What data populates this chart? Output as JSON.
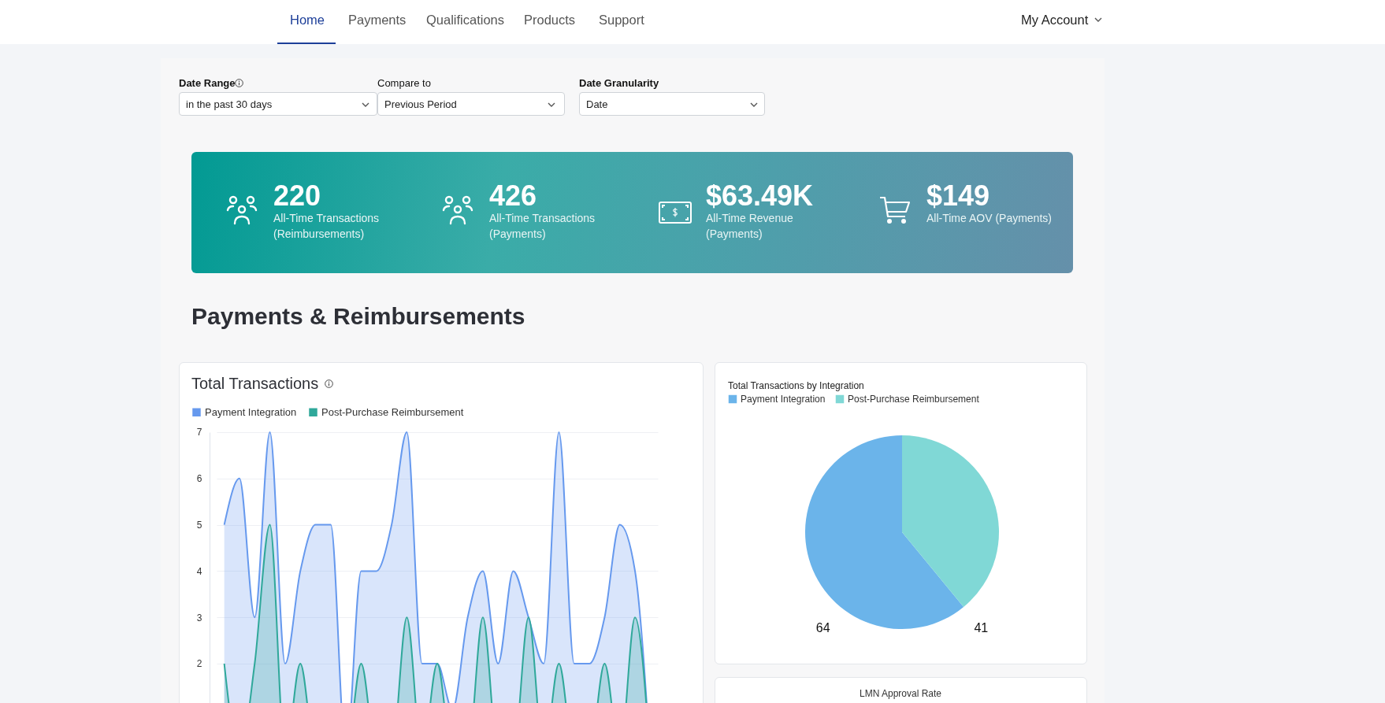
{
  "chart_data": [
    {
      "type": "other",
      "annotations": [
        "Home",
        "Payments",
        "Qualifications",
        "Products",
        "Support",
        "My Account",
        "Date Range",
        "in the past 30 days",
        "Compare to",
        "Previous Period",
        "Date Granularity",
        "Date",
        "Payments & Reimbursements"
      ]
    },
    {
      "type": "other",
      "annotations": [
        "220",
        "All-Time Transactions (Reimbursements)",
        "426",
        "All-Time Transactions (Payments)",
        "$63.49K",
        "All-Time Revenue (Payments)",
        "$149",
        "All-Time AOV (Payments)"
      ]
    },
    {
      "type": "area",
      "title": "Total Transactions",
      "categories": [
        null,
        null,
        null,
        null,
        null,
        null,
        null,
        null,
        null,
        null,
        null,
        null,
        null,
        null,
        null,
        null,
        null,
        null,
        null,
        null,
        null,
        null,
        null,
        null,
        null,
        null,
        null,
        null,
        null
      ],
      "series": [
        {
          "name": "Payment Integration",
          "color": "#6699ee",
          "values": [
            5,
            6,
            3,
            7,
            2,
            4,
            5,
            5,
            0,
            4,
            4,
            5,
            7,
            2,
            2,
            1,
            3,
            4,
            2,
            4,
            3,
            2,
            7,
            2,
            2,
            3,
            5,
            4,
            0
          ]
        },
        {
          "name": "Post-Purchase Reimbursement",
          "color": "#2fa89a",
          "values": [
            2,
            0,
            2,
            5,
            0,
            2,
            0,
            0,
            0,
            2,
            0,
            0,
            3,
            0,
            2,
            0,
            0,
            3,
            0,
            0,
            3,
            0,
            2,
            0,
            0,
            2,
            0,
            3,
            0
          ]
        }
      ],
      "ylim": [
        0,
        7
      ],
      "yticks": [
        2,
        3,
        4,
        5,
        6,
        7
      ],
      "grid": "y",
      "legend": "top left",
      "tick_labels": "y"
    },
    {
      "type": "pie",
      "title": "Total Transactions by Integration",
      "categories": [
        "Payment Integration",
        "Post-Purchase Reimbursement"
      ],
      "values": [
        64,
        41
      ],
      "colors": [
        "#6bb4ea",
        "#80d8d6"
      ],
      "data_labels": true,
      "legend": "top left"
    },
    {
      "type": "other",
      "title": "LMN Approval Rate"
    }
  ]
}
